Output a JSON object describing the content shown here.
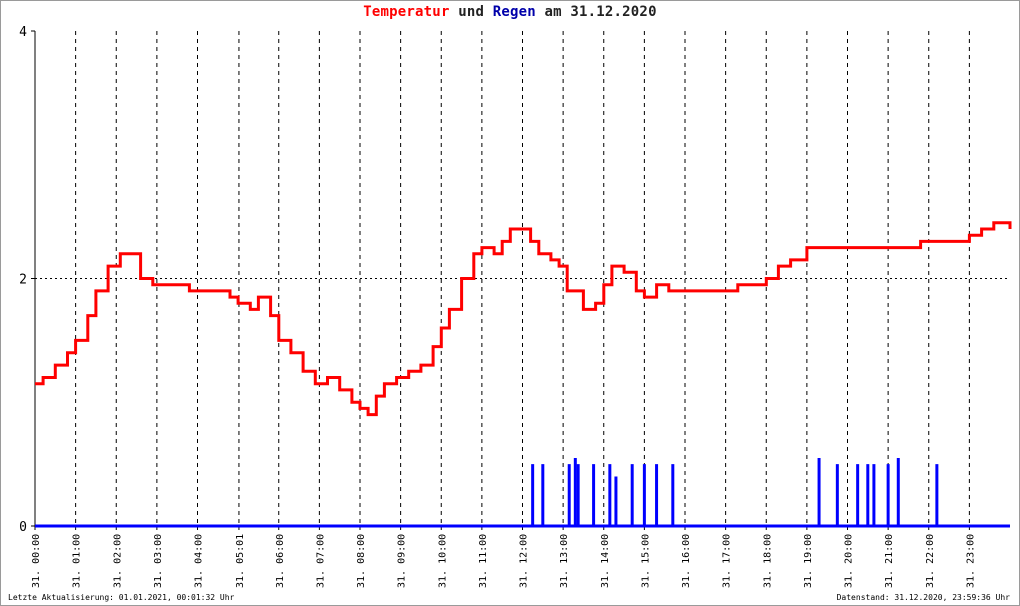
{
  "title": {
    "part1": "Temperatur",
    "part2": " und ",
    "part3": "Regen",
    "part4": " am 31.12.2020"
  },
  "footer": {
    "left": "Letzte Aktualisierung: 01.01.2021, 00:01:32 Uhr",
    "right": "Datenstand: 31.12.2020, 23:59:36 Uhr"
  },
  "colors": {
    "temperature": "#ff0000",
    "rain": "#0000ff",
    "title_temp": "#ff0000",
    "title_rain": "#0000aa"
  },
  "chart_data": {
    "type": "line",
    "xlim": [
      0,
      24
    ],
    "ylim": [
      0,
      4
    ],
    "y_ticks": [
      0,
      2,
      4
    ],
    "x_tick_labels": [
      "31. 00:00",
      "31. 01:00",
      "31. 02:00",
      "31. 03:00",
      "31. 04:00",
      "31. 05:01",
      "31. 06:00",
      "31. 07:00",
      "31. 08:00",
      "31. 09:00",
      "31. 10:00",
      "31. 11:00",
      "31. 12:00",
      "31. 13:00",
      "31. 14:00",
      "31. 15:00",
      "31. 16:00",
      "31. 17:00",
      "31. 18:00",
      "31. 19:00",
      "31. 20:00",
      "31. 21:00",
      "31. 22:00",
      "31. 23:00"
    ],
    "x_tick_hours": [
      0,
      1,
      2,
      3,
      4,
      5.02,
      6,
      7,
      8,
      9,
      10,
      11,
      12,
      13,
      14,
      15,
      16,
      17,
      18,
      19,
      20,
      21,
      22,
      23
    ],
    "grid": true,
    "series": [
      {
        "name": "Temperatur",
        "x": [
          0,
          0.2,
          0.5,
          0.8,
          1.0,
          1.3,
          1.5,
          1.8,
          2.1,
          2.4,
          2.6,
          2.9,
          3.2,
          3.5,
          3.8,
          4.1,
          4.5,
          4.8,
          5.0,
          5.3,
          5.5,
          5.8,
          6.0,
          6.3,
          6.6,
          6.9,
          7.2,
          7.5,
          7.8,
          8.0,
          8.2,
          8.4,
          8.6,
          8.9,
          9.2,
          9.5,
          9.8,
          10.0,
          10.2,
          10.5,
          10.8,
          11.0,
          11.3,
          11.5,
          11.7,
          12.0,
          12.2,
          12.4,
          12.7,
          12.9,
          13.1,
          13.3,
          13.5,
          13.8,
          14.0,
          14.2,
          14.5,
          14.8,
          15.0,
          15.3,
          15.6,
          16.0,
          16.3,
          16.6,
          17.0,
          17.3,
          17.6,
          18.0,
          18.3,
          18.6,
          19.0,
          19.4,
          19.8,
          20.2,
          20.6,
          21.0,
          21.4,
          21.8,
          22.2,
          22.6,
          23.0,
          23.3,
          23.6,
          24.0
        ],
        "values": [
          1.15,
          1.2,
          1.3,
          1.4,
          1.5,
          1.7,
          1.9,
          2.1,
          2.2,
          2.2,
          2.0,
          1.95,
          1.95,
          1.95,
          1.9,
          1.9,
          1.9,
          1.85,
          1.8,
          1.75,
          1.85,
          1.7,
          1.5,
          1.4,
          1.25,
          1.15,
          1.2,
          1.1,
          1.0,
          0.95,
          0.9,
          1.05,
          1.15,
          1.2,
          1.25,
          1.3,
          1.45,
          1.6,
          1.75,
          2.0,
          2.2,
          2.25,
          2.2,
          2.3,
          2.4,
          2.4,
          2.3,
          2.2,
          2.15,
          2.1,
          1.9,
          1.9,
          1.75,
          1.8,
          1.95,
          2.1,
          2.05,
          1.9,
          1.85,
          1.95,
          1.9,
          1.9,
          1.9,
          1.9,
          1.9,
          1.95,
          1.95,
          2.0,
          2.1,
          2.15,
          2.25,
          2.25,
          2.25,
          2.25,
          2.25,
          2.25,
          2.25,
          2.3,
          2.3,
          2.3,
          2.35,
          2.4,
          2.45,
          2.4
        ]
      },
      {
        "name": "Regen",
        "x": [
          12.25,
          12.5,
          13.15,
          13.3,
          13.37,
          13.75,
          14.15,
          14.3,
          14.7,
          15.0,
          15.3,
          15.7,
          19.3,
          19.75,
          20.25,
          20.5,
          20.65,
          21.0,
          21.25,
          22.2
        ],
        "values": [
          0.5,
          0.5,
          0.5,
          0.55,
          0.5,
          0.5,
          0.5,
          0.4,
          0.5,
          0.5,
          0.5,
          0.5,
          0.55,
          0.5,
          0.5,
          0.5,
          0.5,
          0.5,
          0.55,
          0.5
        ]
      }
    ]
  }
}
